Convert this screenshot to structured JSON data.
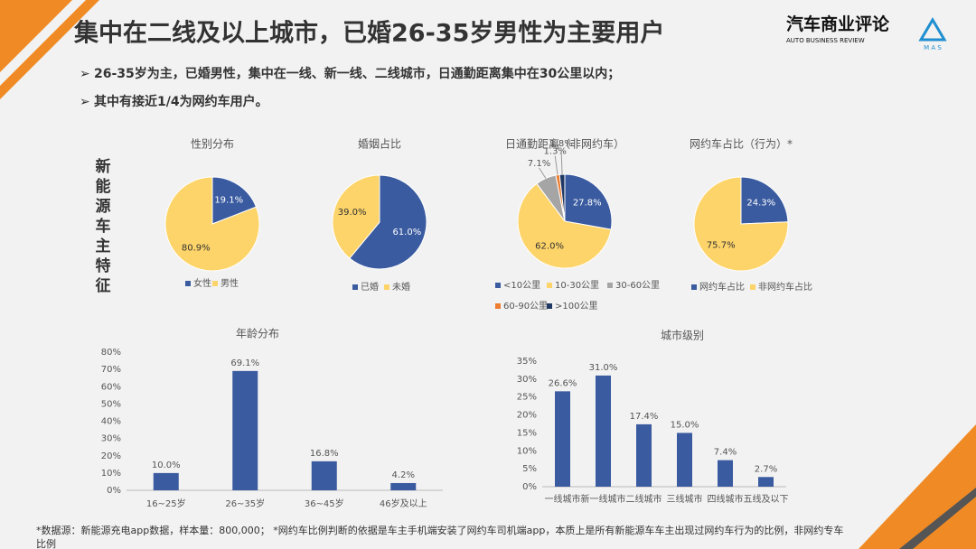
{
  "header": {
    "title": "集中在二线及以上城市，已婚26-35岁男性为主要用户",
    "bullets": [
      "26-35岁为主，已婚男性，集中在一线、新一线、二线城市，日通勤距离集中在30公里以内；",
      "其中有接近1/4为网约车用户。"
    ],
    "logo": "汽车商业评论",
    "logo_en": "AUTO BUSINESS REVIEW",
    "logo_mas": "M A S"
  },
  "side_label": "新能源车主特征",
  "footnote": "*数据源：新能源充电app数据，样本量：800,000； *网约车比例判断的依据是车主手机端安装了网约车司机端app，本质上是所有新能源车车主出现过网约车行为的比例，非网约专车比例",
  "chart_data": [
    {
      "type": "pie",
      "title": "性别分布",
      "categories": [
        "女性",
        "男性"
      ],
      "values": [
        19.1,
        80.9
      ],
      "value_labels": [
        "19.1%",
        "80.9%"
      ],
      "colors": [
        "#3a5ba0",
        "#fdd469"
      ]
    },
    {
      "type": "pie",
      "title": "婚姻占比",
      "categories": [
        "已婚",
        "未婚"
      ],
      "values": [
        61.0,
        39.0
      ],
      "value_labels": [
        "61.0%",
        "39.0%"
      ],
      "colors": [
        "#3a5ba0",
        "#fdd469"
      ]
    },
    {
      "type": "pie",
      "title": "日通勤距离（非网约车）",
      "categories": [
        "<10公里",
        "10-30公里",
        "30-60公里",
        "60-90公里",
        ">100公里"
      ],
      "values": [
        27.8,
        62.0,
        7.1,
        1.3,
        1.8
      ],
      "value_labels": [
        "27.8%",
        "62.0%",
        "7.1%",
        "1.3%",
        "1.8%"
      ],
      "colors": [
        "#3a5ba0",
        "#fdd469",
        "#a5a5a5",
        "#ed7d31",
        "#1f3864"
      ]
    },
    {
      "type": "pie",
      "title": "网约车占比（行为）*",
      "categories": [
        "网约车占比",
        "非网约车占比"
      ],
      "values": [
        24.3,
        75.7
      ],
      "value_labels": [
        "24.3%",
        "75.7%"
      ],
      "colors": [
        "#3a5ba0",
        "#fdd469"
      ]
    },
    {
      "type": "bar",
      "title": "年龄分布",
      "categories": [
        "16~25岁",
        "26~35岁",
        "36~45岁",
        "46岁及以上"
      ],
      "values": [
        10.0,
        69.1,
        16.8,
        4.2
      ],
      "value_labels": [
        "10.0%",
        "69.1%",
        "16.8%",
        "4.2%"
      ],
      "color": "#3a5ba0",
      "ylim": [
        0,
        80
      ],
      "yticks": [
        {
          "value": 0,
          "label": "0%"
        },
        {
          "value": 10,
          "label": "10%"
        },
        {
          "value": 20,
          "label": "20%"
        },
        {
          "value": 30,
          "label": "30%"
        },
        {
          "value": 40,
          "label": "40%"
        },
        {
          "value": 50,
          "label": "50%"
        },
        {
          "value": 60,
          "label": "60%"
        },
        {
          "value": 70,
          "label": "70%"
        },
        {
          "value": 80,
          "label": "80%"
        }
      ]
    },
    {
      "type": "bar",
      "title": "城市级别",
      "categories": [
        "一线城市",
        "新一线城市",
        "二线城市",
        "三线城市",
        "四线城市",
        "五线及以下"
      ],
      "values": [
        26.6,
        31.0,
        17.4,
        15.0,
        7.4,
        2.7
      ],
      "value_labels": [
        "26.6%",
        "31.0%",
        "17.4%",
        "15.0%",
        "7.4%",
        "2.7%"
      ],
      "color": "#3a5ba0",
      "ylim": [
        0,
        35
      ],
      "yticks": [
        {
          "value": 0,
          "label": "0%"
        },
        {
          "value": 5,
          "label": "5%"
        },
        {
          "value": 10,
          "label": "10%"
        },
        {
          "value": 15,
          "label": "15%"
        },
        {
          "value": 20,
          "label": "20%"
        },
        {
          "value": 25,
          "label": "25%"
        },
        {
          "value": 30,
          "label": "30%"
        },
        {
          "value": 35,
          "label": "35%"
        }
      ]
    }
  ]
}
